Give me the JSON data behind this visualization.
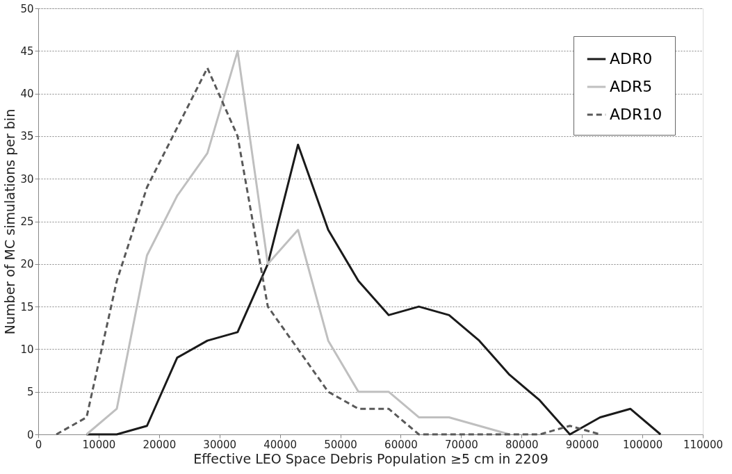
{
  "chart_data": {
    "type": "line",
    "xlabel": "Effective LEO Space Debris Population ≥5 cm in 2209",
    "ylabel": "Number of MC simulations per bin",
    "xlim": [
      0,
      110000
    ],
    "xticks": [
      0,
      10000,
      20000,
      30000,
      40000,
      50000,
      60000,
      70000,
      80000,
      90000,
      100000,
      110000
    ],
    "ylim": [
      0,
      50
    ],
    "yticks": [
      0,
      5,
      10,
      15,
      20,
      25,
      30,
      35,
      40,
      45,
      50
    ],
    "grid": "y",
    "legend": "top right",
    "series": [
      {
        "name": "ADR0",
        "color": "#1a1a1a",
        "line_style": "solid",
        "x": [
          8000,
          13000,
          18000,
          23000,
          28000,
          33000,
          38000,
          43000,
          48000,
          53000,
          58000,
          63000,
          68000,
          73000,
          78000,
          83000,
          88000,
          93000,
          98000,
          103000
        ],
        "values": [
          0,
          0,
          1,
          9,
          11,
          12,
          20,
          34,
          24,
          18,
          14,
          15,
          14,
          11,
          7,
          4,
          0,
          2,
          3,
          0
        ]
      },
      {
        "name": "ADR5",
        "color": "#bfbfbf",
        "line_style": "solid",
        "x": [
          8000,
          13000,
          18000,
          23000,
          28000,
          33000,
          38000,
          43000,
          48000,
          53000,
          58000,
          63000,
          68000,
          73000,
          78000
        ],
        "values": [
          0,
          3,
          21,
          28,
          33,
          45,
          20,
          24,
          11,
          5,
          5,
          2,
          2,
          1,
          0
        ]
      },
      {
        "name": "ADR10",
        "color": "#595959",
        "line_style": "dashed",
        "x": [
          3000,
          8000,
          13000,
          18000,
          23000,
          28000,
          33000,
          38000,
          43000,
          48000,
          53000,
          58000,
          63000,
          68000,
          73000,
          78000,
          83000,
          88000,
          93000
        ],
        "values": [
          0,
          2,
          18,
          29,
          36,
          43,
          35,
          15,
          10,
          5,
          3,
          3,
          0,
          0,
          0,
          0,
          0,
          1,
          0
        ]
      }
    ]
  }
}
